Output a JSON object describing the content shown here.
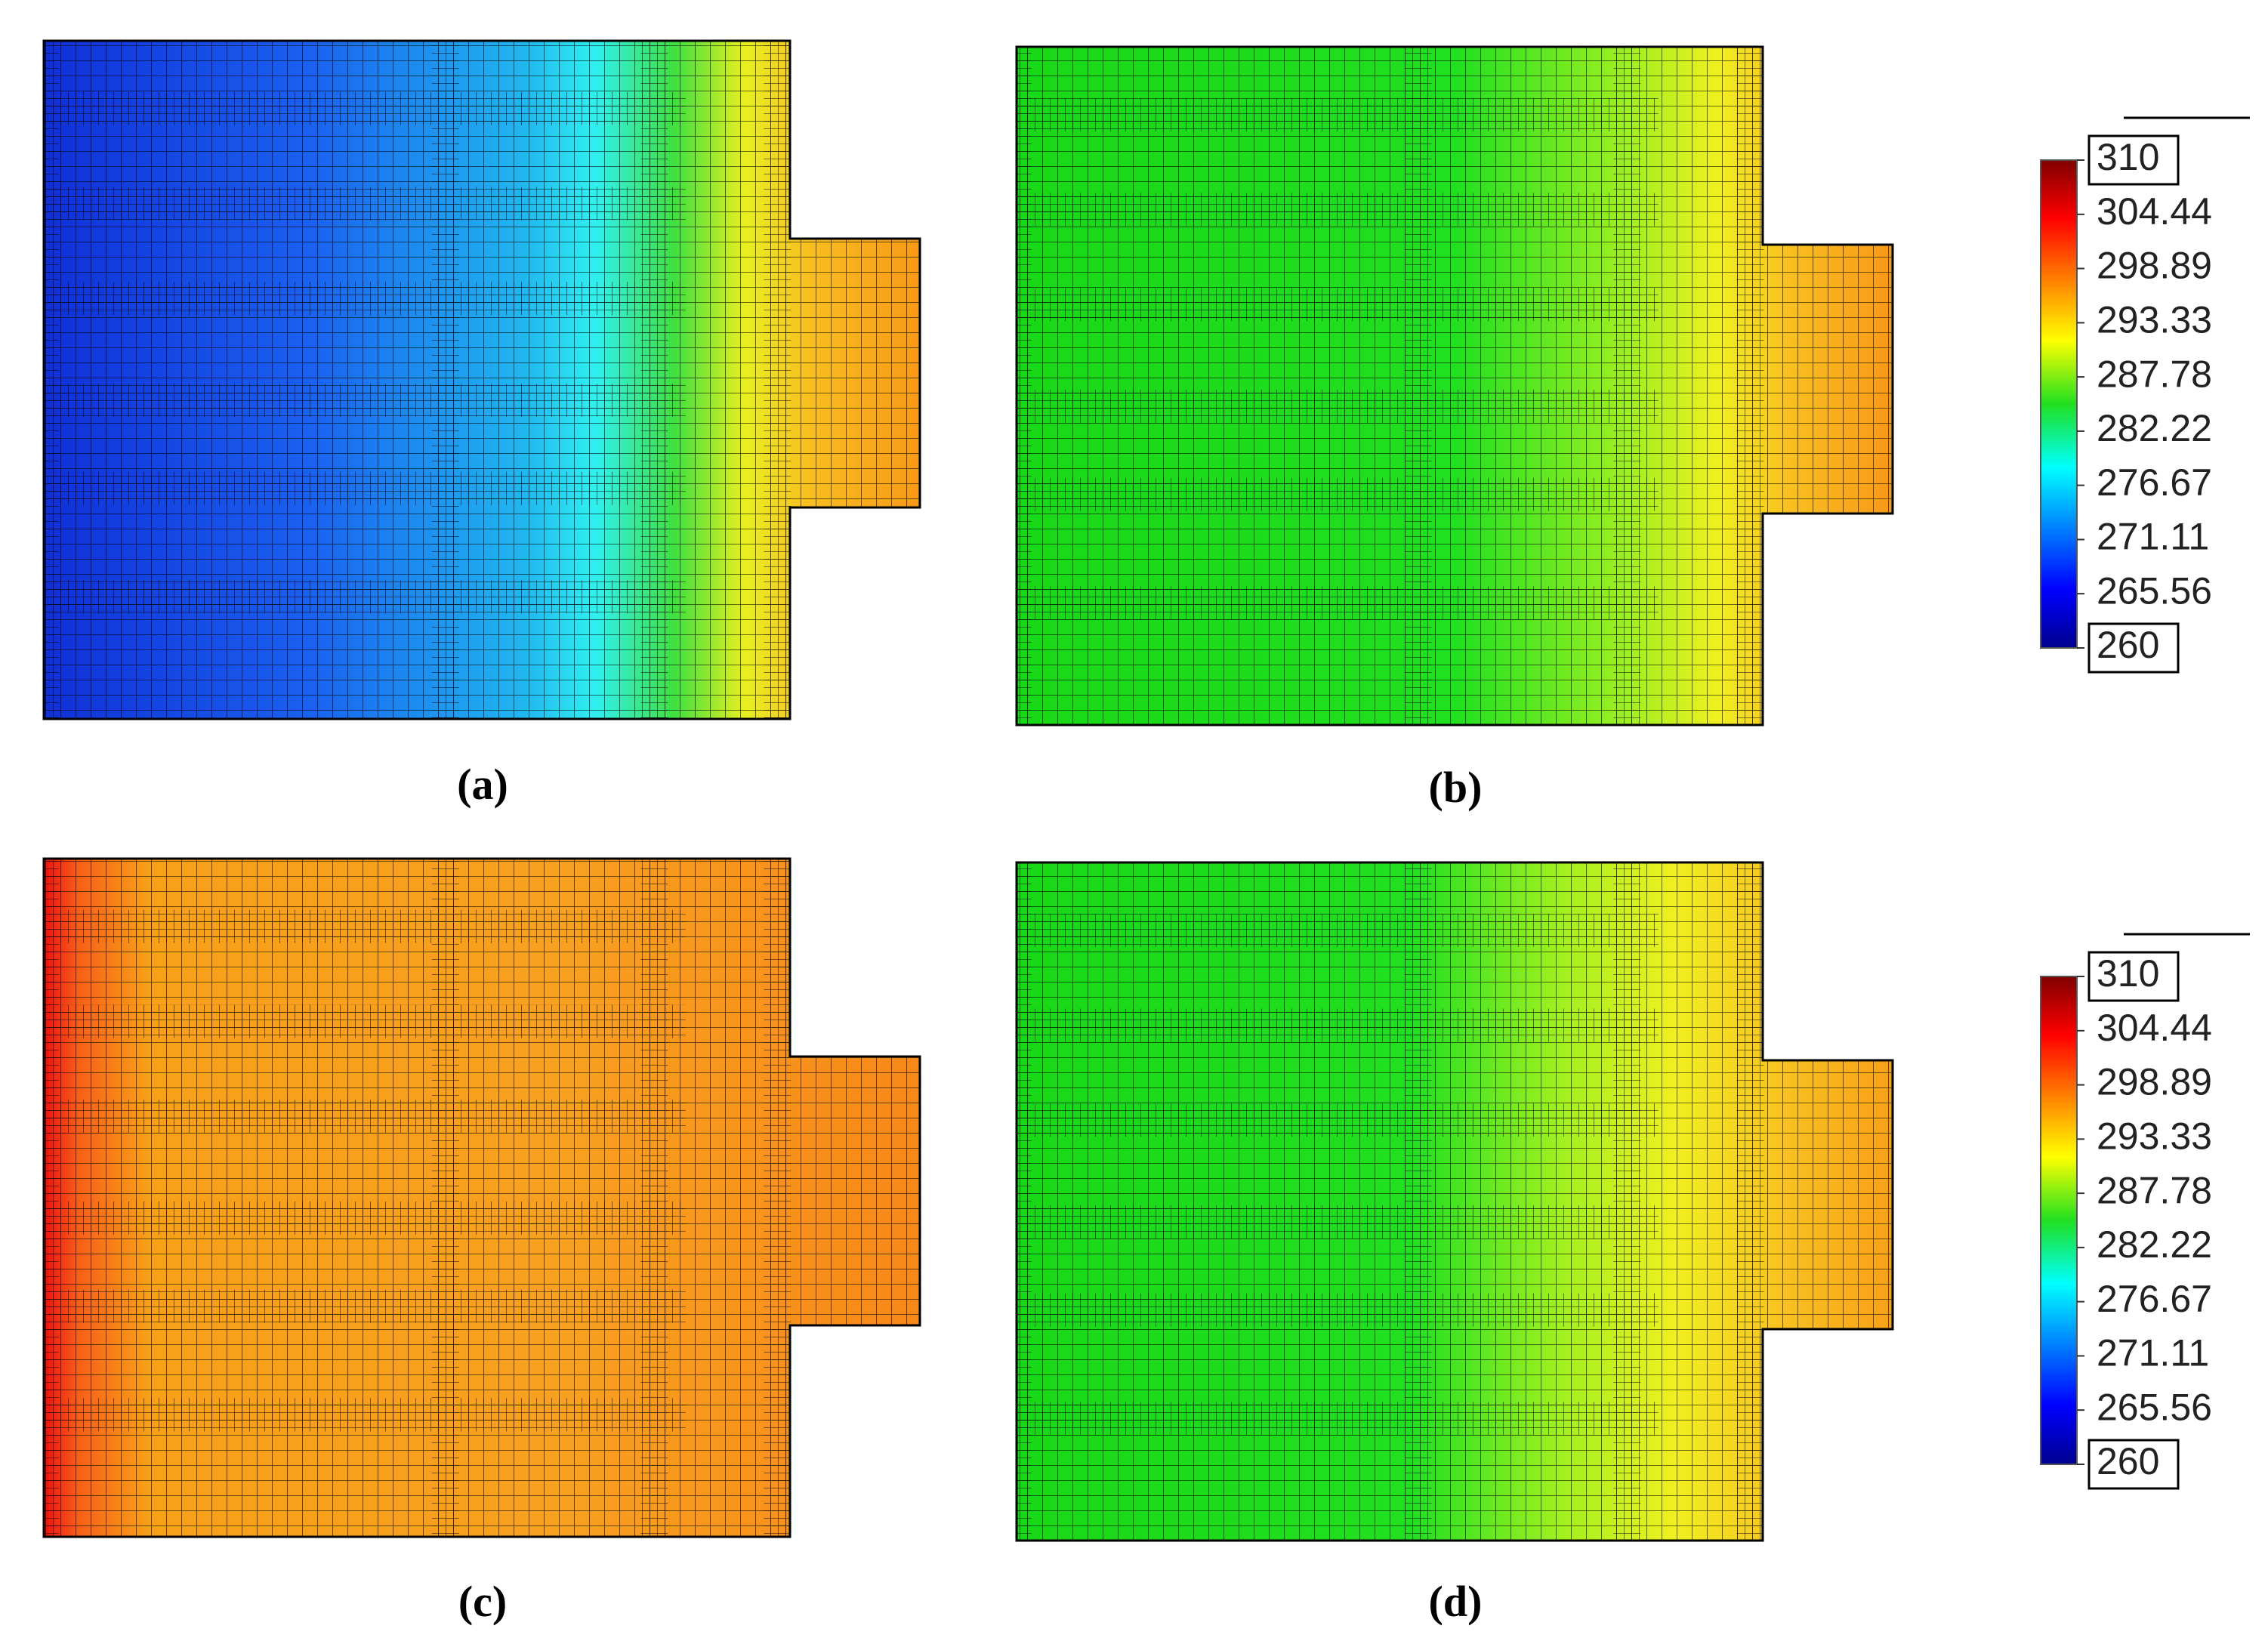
{
  "panels": [
    {
      "label": "(a)"
    },
    {
      "label": "(b)"
    },
    {
      "label": "(c)"
    },
    {
      "label": "(d)"
    }
  ],
  "colorbars": [
    {
      "lim": [
        260,
        310
      ],
      "ticks": [
        310,
        304.44,
        298.89,
        293.33,
        287.78,
        282.22,
        276.67,
        271.11,
        265.56,
        260
      ]
    },
    {
      "lim": [
        260,
        310
      ],
      "ticks": [
        310,
        304.44,
        298.89,
        293.33,
        287.78,
        282.22,
        276.67,
        271.11,
        265.56,
        260
      ]
    }
  ]
}
